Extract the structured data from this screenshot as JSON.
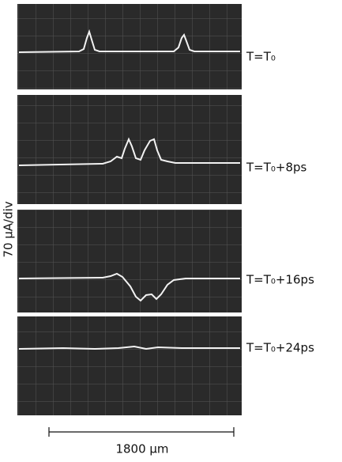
{
  "panels": [
    {
      "label": "T=T₀"
    },
    {
      "label": "T=T₀+8ps"
    },
    {
      "label": "T=T₀+16ps"
    },
    {
      "label": "T=T₀+24ps"
    }
  ],
  "y_axis_label": "70 μA/div",
  "scale_bar_label": "1800 μm"
}
